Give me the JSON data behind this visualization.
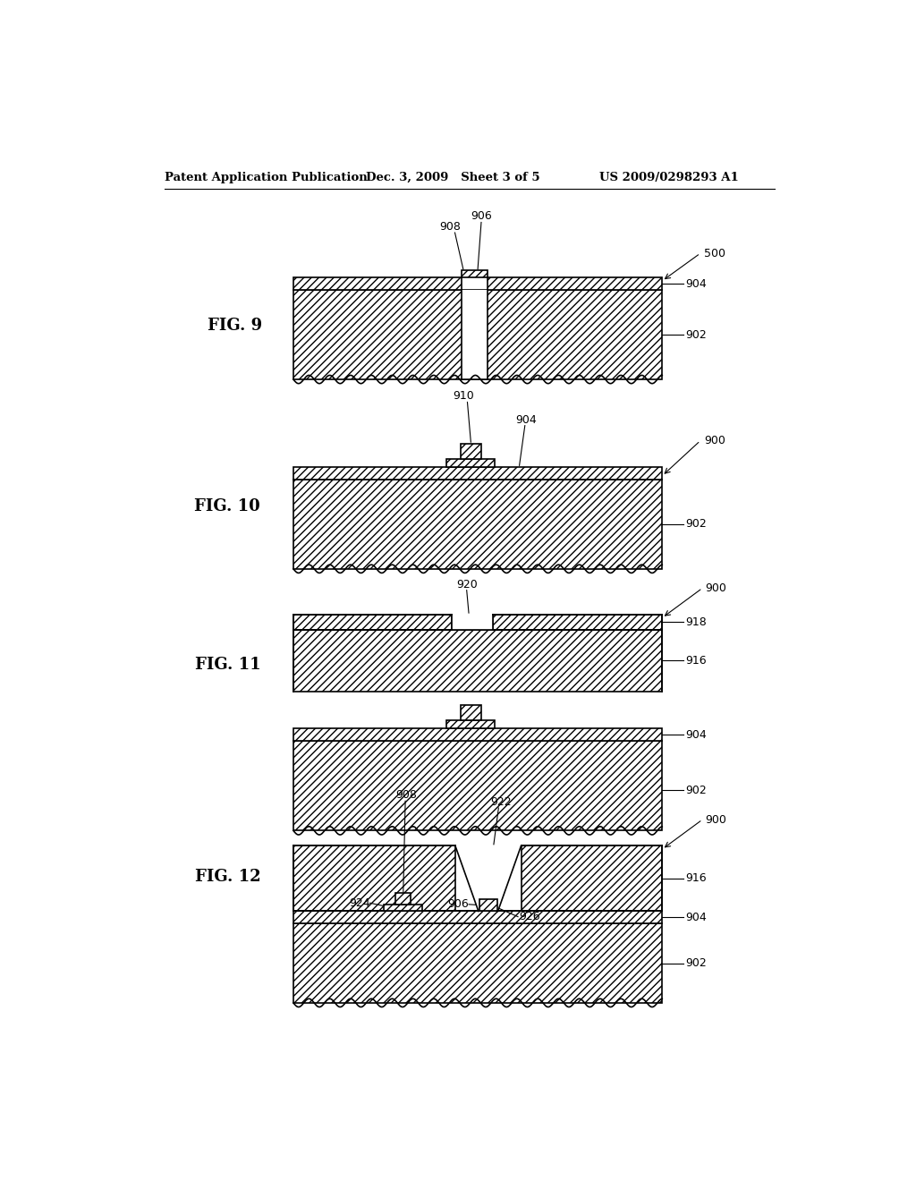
{
  "header_left": "Patent Application Publication",
  "header_mid": "Dec. 3, 2009   Sheet 3 of 5",
  "header_right": "US 2009/0298293 A1",
  "bg_color": "#ffffff",
  "line_color": "#000000"
}
